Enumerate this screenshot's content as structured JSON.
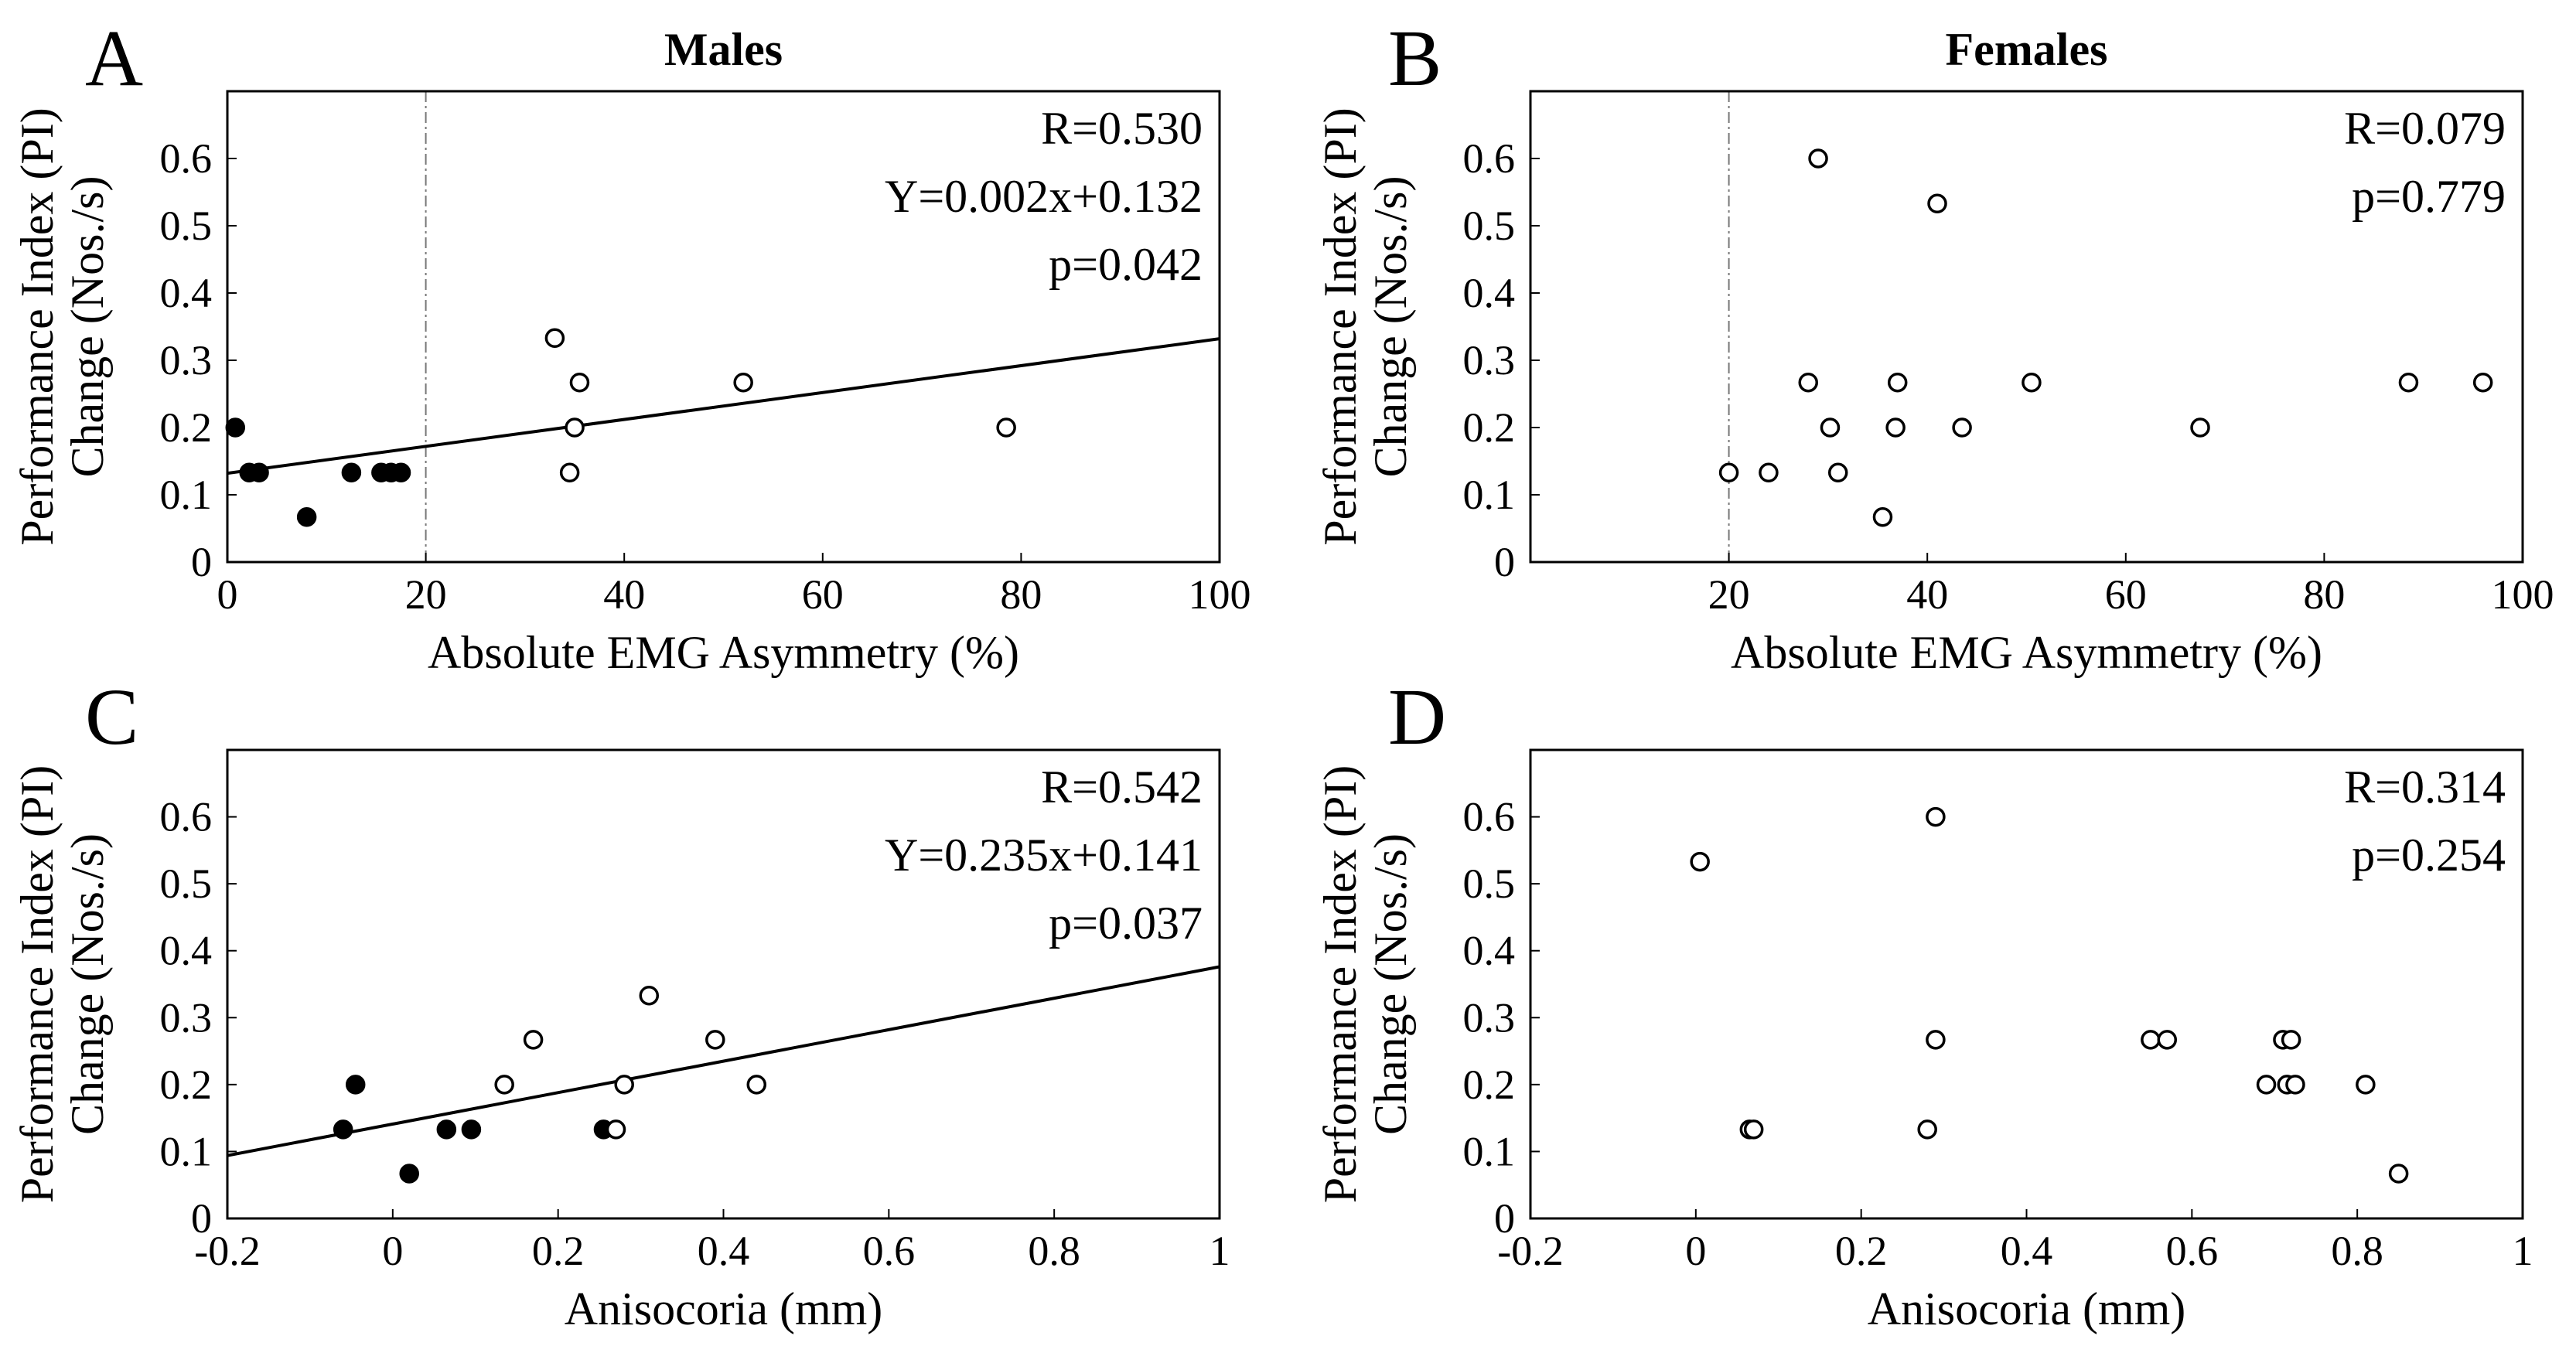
{
  "figure": {
    "colors": {
      "ink": "#000000",
      "background": "#ffffff",
      "threshold_line": "#777777"
    }
  },
  "chart_data": [
    {
      "panel_letter": "A",
      "title": "Males",
      "type": "scatter",
      "xlabel": "Absolute EMG Asymmetry (%)",
      "ylabel": [
        "Performance Index (PI)",
        "Change (Nos./s)"
      ],
      "xlim": [
        0,
        100
      ],
      "ylim": [
        0,
        0.7
      ],
      "xticks": [
        0,
        20,
        40,
        60,
        80,
        100
      ],
      "xtick_labels": [
        "0",
        "20",
        "40",
        "60",
        "80",
        "100"
      ],
      "yticks": [
        0,
        0.1,
        0.2,
        0.3,
        0.4,
        0.5,
        0.6
      ],
      "ytick_labels": [
        "0",
        "0.1",
        "0.2",
        "0.3",
        "0.4",
        "0.5",
        "0.6"
      ],
      "threshold_x": 20,
      "stats": [
        "R=0.530",
        "Y=0.002x+0.132",
        "p=0.042"
      ],
      "regression": {
        "slope": 0.002,
        "intercept": 0.132
      },
      "series": [
        {
          "name": "filled",
          "filled": true,
          "points": [
            [
              0.8,
              0.2
            ],
            [
              2.2,
              0.133
            ],
            [
              3.2,
              0.133
            ],
            [
              8,
              0.067
            ],
            [
              12.5,
              0.133
            ],
            [
              15.5,
              0.133
            ],
            [
              16.5,
              0.133
            ],
            [
              17.5,
              0.133
            ]
          ]
        },
        {
          "name": "open",
          "filled": false,
          "points": [
            [
              33,
              0.333
            ],
            [
              35.5,
              0.267
            ],
            [
              35,
              0.2
            ],
            [
              34.5,
              0.133
            ],
            [
              52,
              0.267
            ],
            [
              78.5,
              0.2
            ]
          ]
        }
      ]
    },
    {
      "panel_letter": "B",
      "title": "Females",
      "type": "scatter",
      "xlabel": "Absolute EMG Asymmetry (%)",
      "ylabel": [
        "Performance Index (PI)",
        "Change (Nos./s)"
      ],
      "xlim": [
        0,
        100
      ],
      "ylim": [
        0,
        0.7
      ],
      "xticks": [
        20,
        40,
        60,
        80,
        100
      ],
      "xtick_labels": [
        "20",
        "40",
        "60",
        "80",
        "100"
      ],
      "yticks": [
        0,
        0.1,
        0.2,
        0.3,
        0.4,
        0.5,
        0.6
      ],
      "ytick_labels": [
        "0",
        "0.1",
        "0.2",
        "0.3",
        "0.4",
        "0.5",
        "0.6"
      ],
      "threshold_x": 20,
      "stats": [
        "R=0.079",
        "p=0.779"
      ],
      "series": [
        {
          "name": "open",
          "filled": false,
          "points": [
            [
              20,
              0.133
            ],
            [
              24,
              0.133
            ],
            [
              28,
              0.267
            ],
            [
              29,
              0.6
            ],
            [
              30.2,
              0.2
            ],
            [
              31,
              0.133
            ],
            [
              35.5,
              0.067
            ],
            [
              37,
              0.267
            ],
            [
              36.8,
              0.2
            ],
            [
              41,
              0.533
            ],
            [
              43.5,
              0.2
            ],
            [
              50.5,
              0.267
            ],
            [
              67.5,
              0.2
            ],
            [
              88.5,
              0.267
            ],
            [
              96,
              0.267
            ]
          ]
        }
      ]
    },
    {
      "panel_letter": "C",
      "title": "",
      "type": "scatter",
      "xlabel": "Anisocoria (mm)",
      "ylabel": [
        "Performance Index (PI)",
        "Change (Nos./s)"
      ],
      "xlim": [
        -0.2,
        1
      ],
      "ylim": [
        0,
        0.7
      ],
      "xticks": [
        -0.2,
        0,
        0.2,
        0.4,
        0.6,
        0.8,
        1
      ],
      "xtick_labels": [
        "-0.2",
        "0",
        "0.2",
        "0.4",
        "0.6",
        "0.8",
        "1"
      ],
      "yticks": [
        0,
        0.1,
        0.2,
        0.3,
        0.4,
        0.5,
        0.6
      ],
      "ytick_labels": [
        "0",
        "0.1",
        "0.2",
        "0.3",
        "0.4",
        "0.5",
        "0.6"
      ],
      "stats": [
        "R=0.542",
        "Y=0.235x+0.141",
        "p=0.037"
      ],
      "regression": {
        "slope": 0.235,
        "intercept": 0.141
      },
      "series": [
        {
          "name": "filled",
          "filled": true,
          "points": [
            [
              -0.06,
              0.133
            ],
            [
              -0.045,
              0.2
            ],
            [
              0.02,
              0.067
            ],
            [
              0.065,
              0.133
            ],
            [
              0.095,
              0.133
            ],
            [
              0.255,
              0.133
            ]
          ]
        },
        {
          "name": "open",
          "filled": false,
          "points": [
            [
              0.135,
              0.2
            ],
            [
              0.17,
              0.267
            ],
            [
              0.27,
              0.133
            ],
            [
              0.28,
              0.2
            ],
            [
              0.31,
              0.333
            ],
            [
              0.39,
              0.267
            ],
            [
              0.44,
              0.2
            ]
          ]
        }
      ]
    },
    {
      "panel_letter": "D",
      "title": "",
      "type": "scatter",
      "xlabel": "Anisocoria (mm)",
      "ylabel": [
        "Performance Index (PI)",
        "Change (Nos./s)"
      ],
      "xlim": [
        -0.2,
        1
      ],
      "ylim": [
        0,
        0.7
      ],
      "xticks": [
        -0.2,
        0,
        0.2,
        0.4,
        0.6,
        0.8,
        1
      ],
      "xtick_labels": [
        "-0.2",
        "0",
        "0.2",
        "0.4",
        "0.6",
        "0.8",
        "1"
      ],
      "yticks": [
        0,
        0.1,
        0.2,
        0.3,
        0.4,
        0.5,
        0.6
      ],
      "ytick_labels": [
        "0",
        "0.1",
        "0.2",
        "0.3",
        "0.4",
        "0.5",
        "0.6"
      ],
      "stats": [
        "R=0.314",
        "p=0.254"
      ],
      "series": [
        {
          "name": "open",
          "filled": false,
          "points": [
            [
              0.005,
              0.533
            ],
            [
              0.065,
              0.133
            ],
            [
              0.07,
              0.133
            ],
            [
              0.28,
              0.133
            ],
            [
              0.29,
              0.6
            ],
            [
              0.29,
              0.267
            ],
            [
              0.55,
              0.267
            ],
            [
              0.57,
              0.267
            ],
            [
              0.69,
              0.2
            ],
            [
              0.71,
              0.267
            ],
            [
              0.715,
              0.2
            ],
            [
              0.72,
              0.267
            ],
            [
              0.725,
              0.2
            ],
            [
              0.81,
              0.2
            ],
            [
              0.85,
              0.067
            ]
          ]
        }
      ]
    }
  ]
}
